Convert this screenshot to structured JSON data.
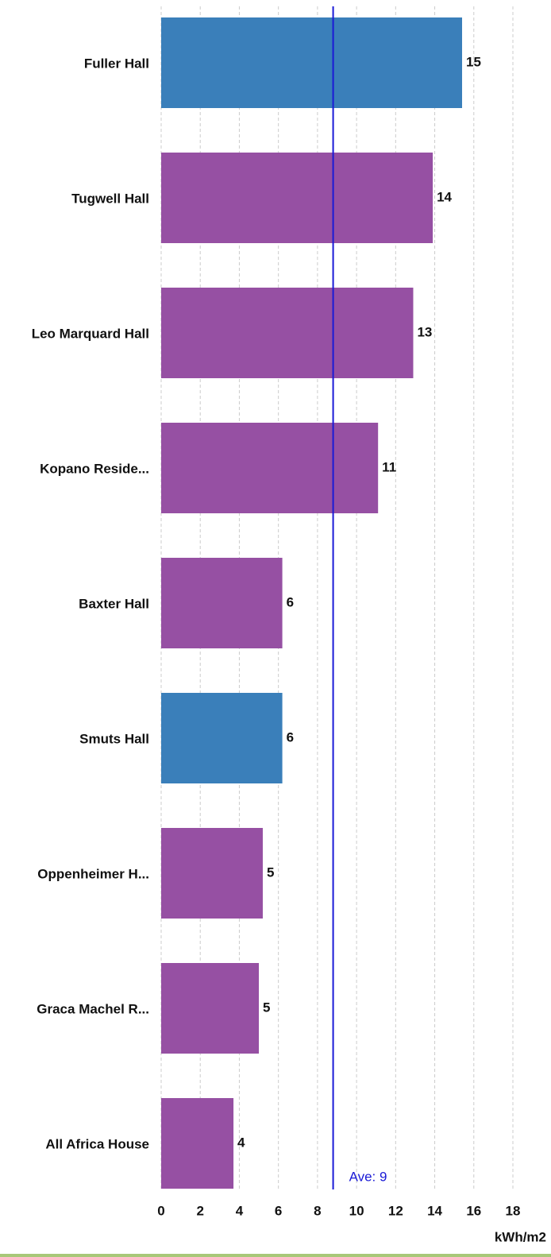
{
  "chart_data": {
    "type": "bar",
    "orientation": "horizontal",
    "categories": [
      "Fuller Hall",
      "Tugwell Hall",
      "Leo Marquard Hall",
      "Kopano Reside...",
      "Baxter Hall",
      "Smuts Hall",
      "Oppenheimer H...",
      "Graca Machel R...",
      "All Africa House"
    ],
    "values": [
      15.4,
      13.9,
      12.9,
      11.1,
      6.2,
      6.2,
      5.2,
      5.0,
      3.7
    ],
    "value_labels": [
      "15",
      "14",
      "13",
      "11",
      "6",
      "6",
      "5",
      "5",
      "4"
    ],
    "colors": [
      "#3a7fba",
      "#9650a3",
      "#9650a3",
      "#9650a3",
      "#9650a3",
      "#3a7fba",
      "#9650a3",
      "#9650a3",
      "#9650a3"
    ],
    "xlim": [
      0,
      18
    ],
    "xticks": [
      0,
      2,
      4,
      6,
      8,
      10,
      12,
      14,
      16,
      18
    ],
    "x_label": "kWh/m2",
    "grid": true,
    "average": {
      "value": 8.8,
      "label": "Ave: 9",
      "color": "#1a1ad6"
    }
  }
}
